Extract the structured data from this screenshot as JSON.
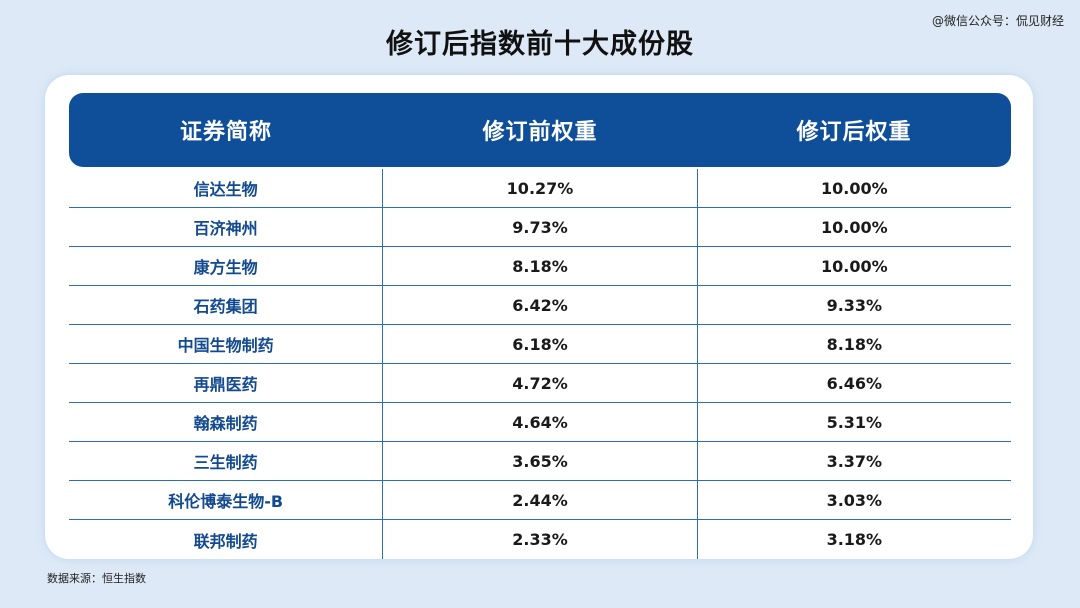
{
  "title": "修订后指数前十大成份股",
  "watermark": "@微信公众号：侃见财经",
  "source": "数据来源：恒生指数",
  "chart_data": {
    "type": "table",
    "columns": [
      "证券简称",
      "修订前权重",
      "修订后权重"
    ],
    "rows": [
      [
        "信达生物",
        "10.27%",
        "10.00%"
      ],
      [
        "百济神州",
        "9.73%",
        "10.00%"
      ],
      [
        "康方生物",
        "8.18%",
        "10.00%"
      ],
      [
        "石药集团",
        "6.42%",
        "9.33%"
      ],
      [
        "中国生物制药",
        "6.18%",
        "8.18%"
      ],
      [
        "再鼎医药",
        "4.72%",
        "6.46%"
      ],
      [
        "翰森制药",
        "4.64%",
        "5.31%"
      ],
      [
        "三生制药",
        "3.65%",
        "3.37%"
      ],
      [
        "科伦博泰生物-B",
        "2.44%",
        "3.03%"
      ],
      [
        "联邦制药",
        "2.33%",
        "3.18%"
      ]
    ]
  },
  "colors": {
    "header_bg": "#0f4f9a",
    "name_text": "#12498f",
    "grid_line": "#2d6fb6",
    "page_bg": "#dde9f6"
  }
}
